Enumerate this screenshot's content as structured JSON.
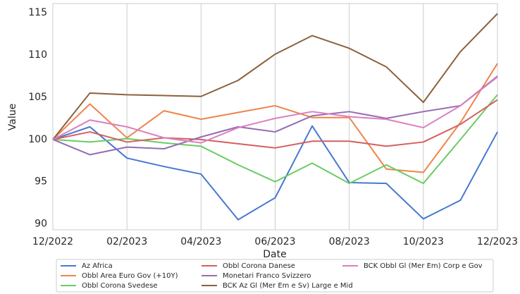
{
  "chart_data": {
    "type": "line",
    "xlabel": "Date",
    "ylabel": "Value",
    "categories": [
      "12/2022",
      null,
      "02/2023",
      null,
      "04/2023",
      null,
      "06/2023",
      null,
      "08/2023",
      null,
      "10/2023",
      null,
      "12/2023"
    ],
    "ylim": [
      89.3,
      116.1
    ],
    "yticks": [
      90,
      95,
      100,
      105,
      110,
      115
    ],
    "grid": "x",
    "legend": "bottom",
    "series": [
      {
        "name": "Az Africa",
        "color": "#4878d0",
        "values": [
          100,
          101.5,
          97.8,
          96.8,
          95.9,
          90.5,
          93.1,
          101.6,
          94.9,
          94.8,
          90.6,
          92.8,
          100.9
        ]
      },
      {
        "name": "Obbl Area Euro Gov (+10Y)",
        "color": "#ee854a",
        "values": [
          100,
          104.2,
          100.2,
          103.4,
          102.4,
          103.2,
          104.0,
          102.6,
          102.6,
          96.5,
          96.1,
          102.0,
          109.0
        ]
      },
      {
        "name": "Obbl Corona Svedese",
        "color": "#6acc64",
        "values": [
          100,
          99.7,
          100.1,
          99.6,
          99.2,
          97.0,
          95.0,
          97.2,
          94.8,
          97.0,
          94.8,
          100.0,
          105.3
        ]
      },
      {
        "name": "Obbl Corona Danese",
        "color": "#d65f5f",
        "values": [
          100,
          100.9,
          99.7,
          100.2,
          100.0,
          99.5,
          99.0,
          99.8,
          99.8,
          99.2,
          99.7,
          101.8,
          104.7
        ]
      },
      {
        "name": "Monetari Franco Svizzero",
        "color": "#956cb4",
        "values": [
          100,
          98.2,
          99.1,
          98.9,
          100.3,
          101.5,
          100.9,
          102.8,
          103.3,
          102.5,
          103.3,
          104.0,
          107.5
        ]
      },
      {
        "name": "BCK Az Gl (Mer Em e Sv) Large e Mid",
        "color": "#8c613c",
        "values": [
          100,
          105.5,
          105.3,
          105.2,
          105.1,
          107.0,
          110.1,
          112.3,
          110.8,
          108.6,
          104.4,
          110.4,
          114.9
        ]
      },
      {
        "name": "BCK Obbl Gl (Mer Em) Corp e Gov",
        "color": "#dc7ec0",
        "values": [
          100,
          102.3,
          101.5,
          100.2,
          99.6,
          101.4,
          102.5,
          103.3,
          102.7,
          102.4,
          101.4,
          104.0,
          107.4
        ]
      }
    ]
  }
}
